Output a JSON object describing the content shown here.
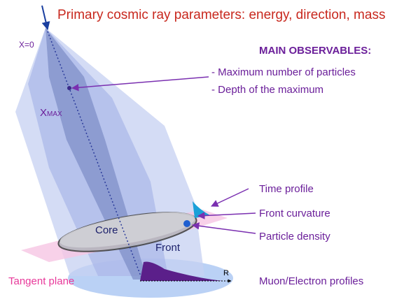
{
  "title": "Primary cosmic ray parameters: energy, direction, mass",
  "x0_label": "X=0",
  "observables": {
    "heading": "MAIN OBSERVABLES:",
    "items": [
      "- Maximum number of particles",
      "- Depth of the maximum"
    ]
  },
  "xmax_label": {
    "main": "X",
    "sub": "MAX"
  },
  "labels": {
    "time_profile": "Time profile",
    "front_curvature": "Front curvature",
    "particle_density": "Particle density",
    "core": "Core",
    "front": "Front",
    "tangent_plane": "Tangent plane",
    "r": "R",
    "profiles": "Muon/Electron profiles"
  }
}
